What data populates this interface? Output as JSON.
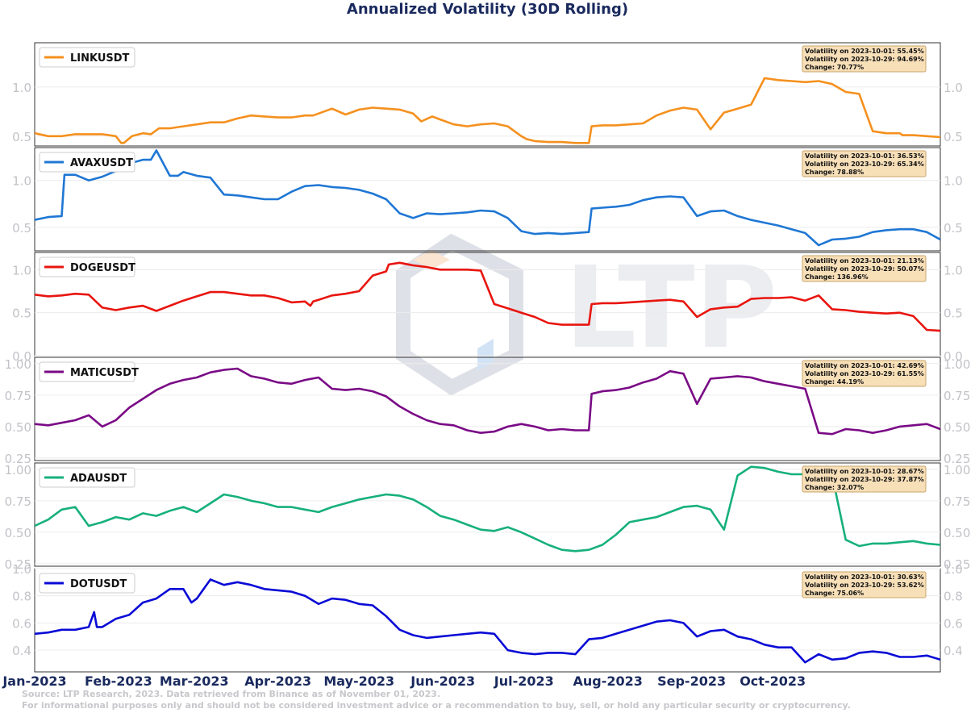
{
  "title": "Annualized Volatility (30D Rolling)",
  "watermark": "LTP",
  "source_line1": "Source: LTP Research, 2023. Data retrieved from Binance as of November 01, 2023.",
  "source_line2": "For informational purposes only and should not be considered investment advice or a recommendation to buy, sell, or hold any particular security or cryptocurrency.",
  "x_ticks": [
    "Jan-2023",
    "Feb-2023",
    "Mar-2023",
    "Apr-2023",
    "May-2023",
    "Jun-2023",
    "Jul-2023",
    "Aug-2023",
    "Sep-2023",
    "Oct-2023"
  ],
  "colors": {
    "title": "#1a2a5e",
    "tick_y": "#c2c2c8",
    "tick_x": "#1a2a5e",
    "info_fill": "#f7dfb8",
    "info_stroke": "#c8a46a"
  },
  "chart_data": [
    {
      "type": "line",
      "name": "LINKUSDT",
      "color": "#f5901e",
      "ylim": [
        0.4,
        1.45
      ],
      "yticks": [
        "0.5",
        "1.0"
      ],
      "ytick_values": [
        0.5,
        1.0
      ],
      "info": [
        "Volatility on 2023-10-01: 55.45%",
        "Volatility on 2023-10-29: 94.69%",
        "Change: 70.77%"
      ],
      "x": [
        0,
        5,
        10,
        15,
        20,
        25,
        30,
        32,
        33,
        36,
        40,
        43,
        46,
        50,
        55,
        60,
        65,
        70,
        75,
        80,
        85,
        90,
        95,
        100,
        103,
        107,
        110,
        115,
        120,
        125,
        130,
        135,
        140,
        143,
        147,
        150,
        155,
        160,
        165,
        170,
        175,
        180,
        182,
        185,
        190,
        195,
        200,
        205,
        206,
        210,
        215,
        220,
        225,
        230,
        235,
        240,
        245,
        250,
        255,
        260,
        265,
        270,
        275,
        280,
        285,
        290,
        295,
        300,
        305,
        310,
        315,
        320,
        321,
        325,
        330,
        335
      ],
      "y": [
        0.53,
        0.5,
        0.5,
        0.52,
        0.52,
        0.52,
        0.5,
        0.43,
        0.43,
        0.5,
        0.53,
        0.52,
        0.58,
        0.58,
        0.6,
        0.62,
        0.64,
        0.64,
        0.68,
        0.71,
        0.7,
        0.69,
        0.69,
        0.71,
        0.71,
        0.75,
        0.78,
        0.72,
        0.77,
        0.79,
        0.78,
        0.77,
        0.73,
        0.65,
        0.7,
        0.67,
        0.62,
        0.6,
        0.62,
        0.63,
        0.6,
        0.5,
        0.47,
        0.45,
        0.44,
        0.44,
        0.43,
        0.43,
        0.6,
        0.61,
        0.61,
        0.62,
        0.63,
        0.71,
        0.76,
        0.79,
        0.77,
        0.57,
        0.74,
        0.78,
        0.82,
        1.09,
        1.07,
        1.06,
        1.05,
        1.06,
        1.03,
        0.95,
        0.93,
        0.55,
        0.53,
        0.53,
        0.51,
        0.51,
        0.5,
        0.49
      ]
    },
    {
      "type": "line",
      "name": "AVAXUSDT",
      "color": "#1f77d4",
      "ylim": [
        0.25,
        1.35
      ],
      "yticks": [
        "0.5",
        "1.0"
      ],
      "ytick_values": [
        0.5,
        1.0
      ],
      "info": [
        "Volatility on 2023-10-01: 36.53%",
        "Volatility on 2023-10-29: 65.34%",
        "Change: 78.88%"
      ],
      "x": [
        0,
        5,
        10,
        11,
        15,
        20,
        25,
        30,
        35,
        40,
        43,
        45,
        50,
        53,
        55,
        60,
        65,
        70,
        75,
        80,
        85,
        90,
        95,
        100,
        105,
        110,
        115,
        120,
        125,
        130,
        135,
        140,
        145,
        150,
        155,
        160,
        165,
        170,
        175,
        180,
        185,
        190,
        195,
        200,
        205,
        206,
        210,
        215,
        220,
        225,
        230,
        235,
        240,
        245,
        250,
        255,
        260,
        265,
        270,
        275,
        280,
        285,
        290,
        295,
        300,
        305,
        310,
        315,
        320,
        325,
        330,
        335
      ],
      "y": [
        0.58,
        0.61,
        0.62,
        1.06,
        1.06,
        1.0,
        1.04,
        1.1,
        1.18,
        1.22,
        1.22,
        1.32,
        1.05,
        1.05,
        1.09,
        1.05,
        1.03,
        0.85,
        0.84,
        0.82,
        0.8,
        0.8,
        0.88,
        0.94,
        0.95,
        0.93,
        0.92,
        0.9,
        0.86,
        0.8,
        0.65,
        0.6,
        0.65,
        0.64,
        0.65,
        0.66,
        0.68,
        0.67,
        0.6,
        0.46,
        0.43,
        0.44,
        0.43,
        0.44,
        0.45,
        0.7,
        0.71,
        0.72,
        0.74,
        0.79,
        0.82,
        0.83,
        0.82,
        0.62,
        0.67,
        0.68,
        0.62,
        0.58,
        0.55,
        0.52,
        0.48,
        0.44,
        0.31,
        0.37,
        0.38,
        0.4,
        0.45,
        0.47,
        0.48,
        0.48,
        0.45,
        0.37
      ]
    },
    {
      "type": "line",
      "name": "DOGEUSDT",
      "color": "#e8150f",
      "ylim": [
        0.0,
        1.2
      ],
      "yticks": [
        "0.0",
        "0.5",
        "1.0"
      ],
      "ytick_values": [
        0.0,
        0.5,
        1.0
      ],
      "info": [
        "Volatility on 2023-10-01: 21.13%",
        "Volatility on 2023-10-29: 50.07%",
        "Change: 136.96%"
      ],
      "x": [
        0,
        5,
        10,
        15,
        20,
        25,
        30,
        35,
        40,
        45,
        50,
        55,
        60,
        65,
        70,
        75,
        80,
        85,
        90,
        95,
        100,
        102,
        103,
        105,
        110,
        115,
        120,
        125,
        130,
        131,
        135,
        140,
        145,
        150,
        155,
        160,
        165,
        170,
        175,
        180,
        185,
        190,
        195,
        200,
        205,
        206,
        210,
        215,
        220,
        225,
        230,
        235,
        240,
        245,
        250,
        255,
        260,
        265,
        270,
        275,
        280,
        285,
        290,
        295,
        300,
        305,
        310,
        315,
        320,
        325,
        330,
        335
      ],
      "y": [
        0.71,
        0.69,
        0.7,
        0.72,
        0.71,
        0.56,
        0.53,
        0.56,
        0.58,
        0.52,
        0.58,
        0.64,
        0.69,
        0.74,
        0.74,
        0.72,
        0.7,
        0.7,
        0.67,
        0.62,
        0.63,
        0.58,
        0.63,
        0.65,
        0.7,
        0.72,
        0.75,
        0.93,
        0.98,
        1.06,
        1.08,
        1.05,
        1.03,
        1.0,
        1.0,
        1.0,
        0.99,
        0.6,
        0.55,
        0.5,
        0.45,
        0.38,
        0.36,
        0.36,
        0.36,
        0.6,
        0.61,
        0.61,
        0.62,
        0.63,
        0.64,
        0.65,
        0.63,
        0.45,
        0.54,
        0.56,
        0.57,
        0.66,
        0.67,
        0.67,
        0.68,
        0.64,
        0.7,
        0.54,
        0.53,
        0.51,
        0.5,
        0.49,
        0.5,
        0.46,
        0.3,
        0.29
      ]
    },
    {
      "type": "line",
      "name": "MATICUSDT",
      "color": "#7a0a86",
      "ylim": [
        0.23,
        1.05
      ],
      "yticks": [
        "0.25",
        "0.50",
        "0.75",
        "1.00"
      ],
      "ytick_values": [
        0.25,
        0.5,
        0.75,
        1.0
      ],
      "info": [
        "Volatility on 2023-10-01: 42.69%",
        "Volatility on 2023-10-29: 61.55%",
        "Change: 44.19%"
      ],
      "x": [
        0,
        5,
        10,
        15,
        20,
        25,
        30,
        35,
        40,
        45,
        50,
        55,
        60,
        65,
        70,
        75,
        80,
        85,
        90,
        95,
        100,
        105,
        110,
        115,
        120,
        125,
        130,
        135,
        140,
        145,
        150,
        155,
        160,
        165,
        170,
        175,
        180,
        185,
        190,
        195,
        200,
        205,
        206,
        210,
        215,
        220,
        225,
        230,
        235,
        240,
        245,
        250,
        255,
        260,
        265,
        270,
        275,
        280,
        285,
        290,
        295,
        300,
        305,
        310,
        315,
        320,
        325,
        330,
        335
      ],
      "y": [
        0.52,
        0.51,
        0.53,
        0.55,
        0.59,
        0.5,
        0.55,
        0.65,
        0.72,
        0.79,
        0.84,
        0.87,
        0.89,
        0.93,
        0.95,
        0.96,
        0.9,
        0.88,
        0.85,
        0.84,
        0.87,
        0.89,
        0.8,
        0.79,
        0.8,
        0.78,
        0.74,
        0.66,
        0.6,
        0.55,
        0.52,
        0.51,
        0.47,
        0.45,
        0.46,
        0.5,
        0.52,
        0.5,
        0.47,
        0.48,
        0.47,
        0.47,
        0.76,
        0.78,
        0.79,
        0.81,
        0.85,
        0.88,
        0.94,
        0.92,
        0.68,
        0.88,
        0.89,
        0.9,
        0.89,
        0.86,
        0.84,
        0.82,
        0.8,
        0.45,
        0.44,
        0.48,
        0.47,
        0.45,
        0.47,
        0.5,
        0.51,
        0.52,
        0.48
      ]
    },
    {
      "type": "line",
      "name": "ADAUSDT",
      "color": "#16b07c",
      "ylim": [
        0.23,
        1.05
      ],
      "yticks": [
        "0.25",
        "0.50",
        "0.75",
        "1.00"
      ],
      "ytick_values": [
        0.25,
        0.5,
        0.75,
        1.0
      ],
      "info": [
        "Volatility on 2023-10-01: 28.67%",
        "Volatility on 2023-10-29: 37.87%",
        "Change: 32.07%"
      ],
      "x": [
        0,
        5,
        10,
        15,
        20,
        25,
        30,
        35,
        40,
        45,
        50,
        55,
        60,
        65,
        70,
        75,
        80,
        85,
        90,
        95,
        100,
        105,
        110,
        115,
        120,
        125,
        130,
        135,
        140,
        145,
        150,
        155,
        160,
        165,
        170,
        175,
        180,
        185,
        190,
        195,
        200,
        205,
        210,
        215,
        220,
        225,
        230,
        235,
        240,
        245,
        250,
        255,
        260,
        265,
        270,
        275,
        280,
        285,
        290,
        295,
        300,
        305,
        310,
        315,
        320,
        325,
        330,
        335
      ],
      "y": [
        0.55,
        0.6,
        0.68,
        0.7,
        0.55,
        0.58,
        0.62,
        0.6,
        0.65,
        0.63,
        0.67,
        0.7,
        0.66,
        0.73,
        0.8,
        0.78,
        0.75,
        0.73,
        0.7,
        0.7,
        0.68,
        0.66,
        0.7,
        0.73,
        0.76,
        0.78,
        0.8,
        0.79,
        0.76,
        0.7,
        0.63,
        0.6,
        0.56,
        0.52,
        0.51,
        0.54,
        0.5,
        0.45,
        0.4,
        0.36,
        0.35,
        0.36,
        0.4,
        0.48,
        0.58,
        0.6,
        0.62,
        0.66,
        0.7,
        0.71,
        0.68,
        0.52,
        0.95,
        1.02,
        1.01,
        0.98,
        0.96,
        0.96,
        0.95,
        0.95,
        0.44,
        0.39,
        0.41,
        0.41,
        0.42,
        0.43,
        0.41,
        0.4
      ]
    },
    {
      "type": "line",
      "name": "DOTUSDT",
      "color": "#0a0ad6",
      "ylim": [
        0.24,
        1.0
      ],
      "yticks": [
        "0.4",
        "0.6",
        "0.8",
        "1.0"
      ],
      "ytick_values": [
        0.4,
        0.6,
        0.8,
        1.0
      ],
      "info": [
        "Volatility on 2023-10-01: 30.63%",
        "Volatility on 2023-10-29: 53.62%",
        "Change: 75.06%"
      ],
      "x": [
        0,
        5,
        10,
        15,
        20,
        22,
        23,
        25,
        30,
        35,
        40,
        45,
        50,
        55,
        58,
        60,
        65,
        70,
        75,
        80,
        85,
        90,
        95,
        100,
        105,
        110,
        115,
        120,
        125,
        130,
        135,
        140,
        145,
        150,
        155,
        160,
        165,
        170,
        175,
        180,
        185,
        190,
        195,
        200,
        205,
        210,
        215,
        220,
        225,
        230,
        235,
        240,
        245,
        250,
        255,
        260,
        265,
        270,
        275,
        280,
        285,
        290,
        295,
        300,
        305,
        310,
        315,
        320,
        325,
        330,
        335
      ],
      "y": [
        0.52,
        0.53,
        0.55,
        0.55,
        0.57,
        0.68,
        0.57,
        0.57,
        0.63,
        0.66,
        0.75,
        0.78,
        0.85,
        0.85,
        0.75,
        0.78,
        0.92,
        0.88,
        0.9,
        0.88,
        0.85,
        0.84,
        0.83,
        0.8,
        0.74,
        0.78,
        0.77,
        0.74,
        0.73,
        0.65,
        0.55,
        0.51,
        0.49,
        0.5,
        0.51,
        0.52,
        0.53,
        0.52,
        0.4,
        0.38,
        0.37,
        0.38,
        0.38,
        0.37,
        0.48,
        0.49,
        0.52,
        0.55,
        0.58,
        0.61,
        0.62,
        0.6,
        0.5,
        0.54,
        0.55,
        0.5,
        0.48,
        0.44,
        0.42,
        0.42,
        0.31,
        0.37,
        0.33,
        0.34,
        0.38,
        0.39,
        0.38,
        0.35,
        0.35,
        0.36,
        0.33
      ]
    }
  ]
}
